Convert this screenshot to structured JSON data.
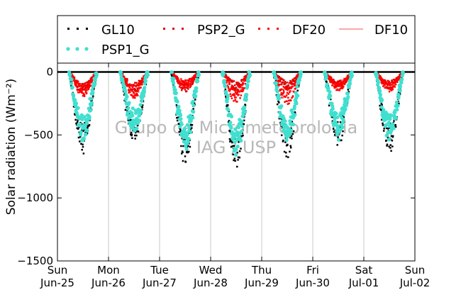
{
  "chart_data": {
    "type": "scatter",
    "ylabel": "Solar radiation (Wm⁻²)",
    "ylim": [
      -1500,
      70
    ],
    "yticks": [
      0,
      -500,
      -1000,
      -1500
    ],
    "xlim": [
      0,
      7
    ],
    "xticks": [
      {
        "x": 0,
        "day": "Sun",
        "date": "Jun-25"
      },
      {
        "x": 1,
        "day": "Mon",
        "date": "Jun-26"
      },
      {
        "x": 2,
        "day": "Tue",
        "date": "Jun-27"
      },
      {
        "x": 3,
        "day": "Wed",
        "date": "Jun-28"
      },
      {
        "x": 4,
        "day": "Thu",
        "date": "Jun-29"
      },
      {
        "x": 5,
        "day": "Fri",
        "date": "Jun-30"
      },
      {
        "x": 6,
        "day": "Sat",
        "date": "Jul-01"
      },
      {
        "x": 7,
        "day": "Sun",
        "date": "Jul-02"
      }
    ],
    "grid": "vertical",
    "legend_position": "top",
    "watermark": [
      "Grupo de Micrometeorologia",
      "IAG / USP"
    ],
    "series": [
      {
        "name": "GL10",
        "color": "#000000",
        "marker": "small-square",
        "daily_min": [
          -650,
          -570,
          -720,
          -750,
          -680,
          -590,
          -640
        ]
      },
      {
        "name": "PSP2_G",
        "color": "#e00000",
        "marker": "small-square",
        "daily_min": [
          -170,
          -170,
          -160,
          -150,
          -140,
          -140,
          -140
        ]
      },
      {
        "name": "DF20",
        "color": "#ff0000",
        "marker": "small-square",
        "daily_min": [
          -200,
          -210,
          -130,
          -250,
          -260,
          -150,
          -160
        ]
      },
      {
        "name": "DF10",
        "color": "#ff7070",
        "marker": "line",
        "daily_min": [
          -190,
          -200,
          -120,
          -240,
          -250,
          -140,
          -150
        ]
      },
      {
        "name": "PSP1_G",
        "color": "#40e0d0",
        "marker": "circle",
        "daily_min": [
          -540,
          -480,
          -600,
          -650,
          -560,
          -530,
          -540
        ]
      }
    ]
  }
}
